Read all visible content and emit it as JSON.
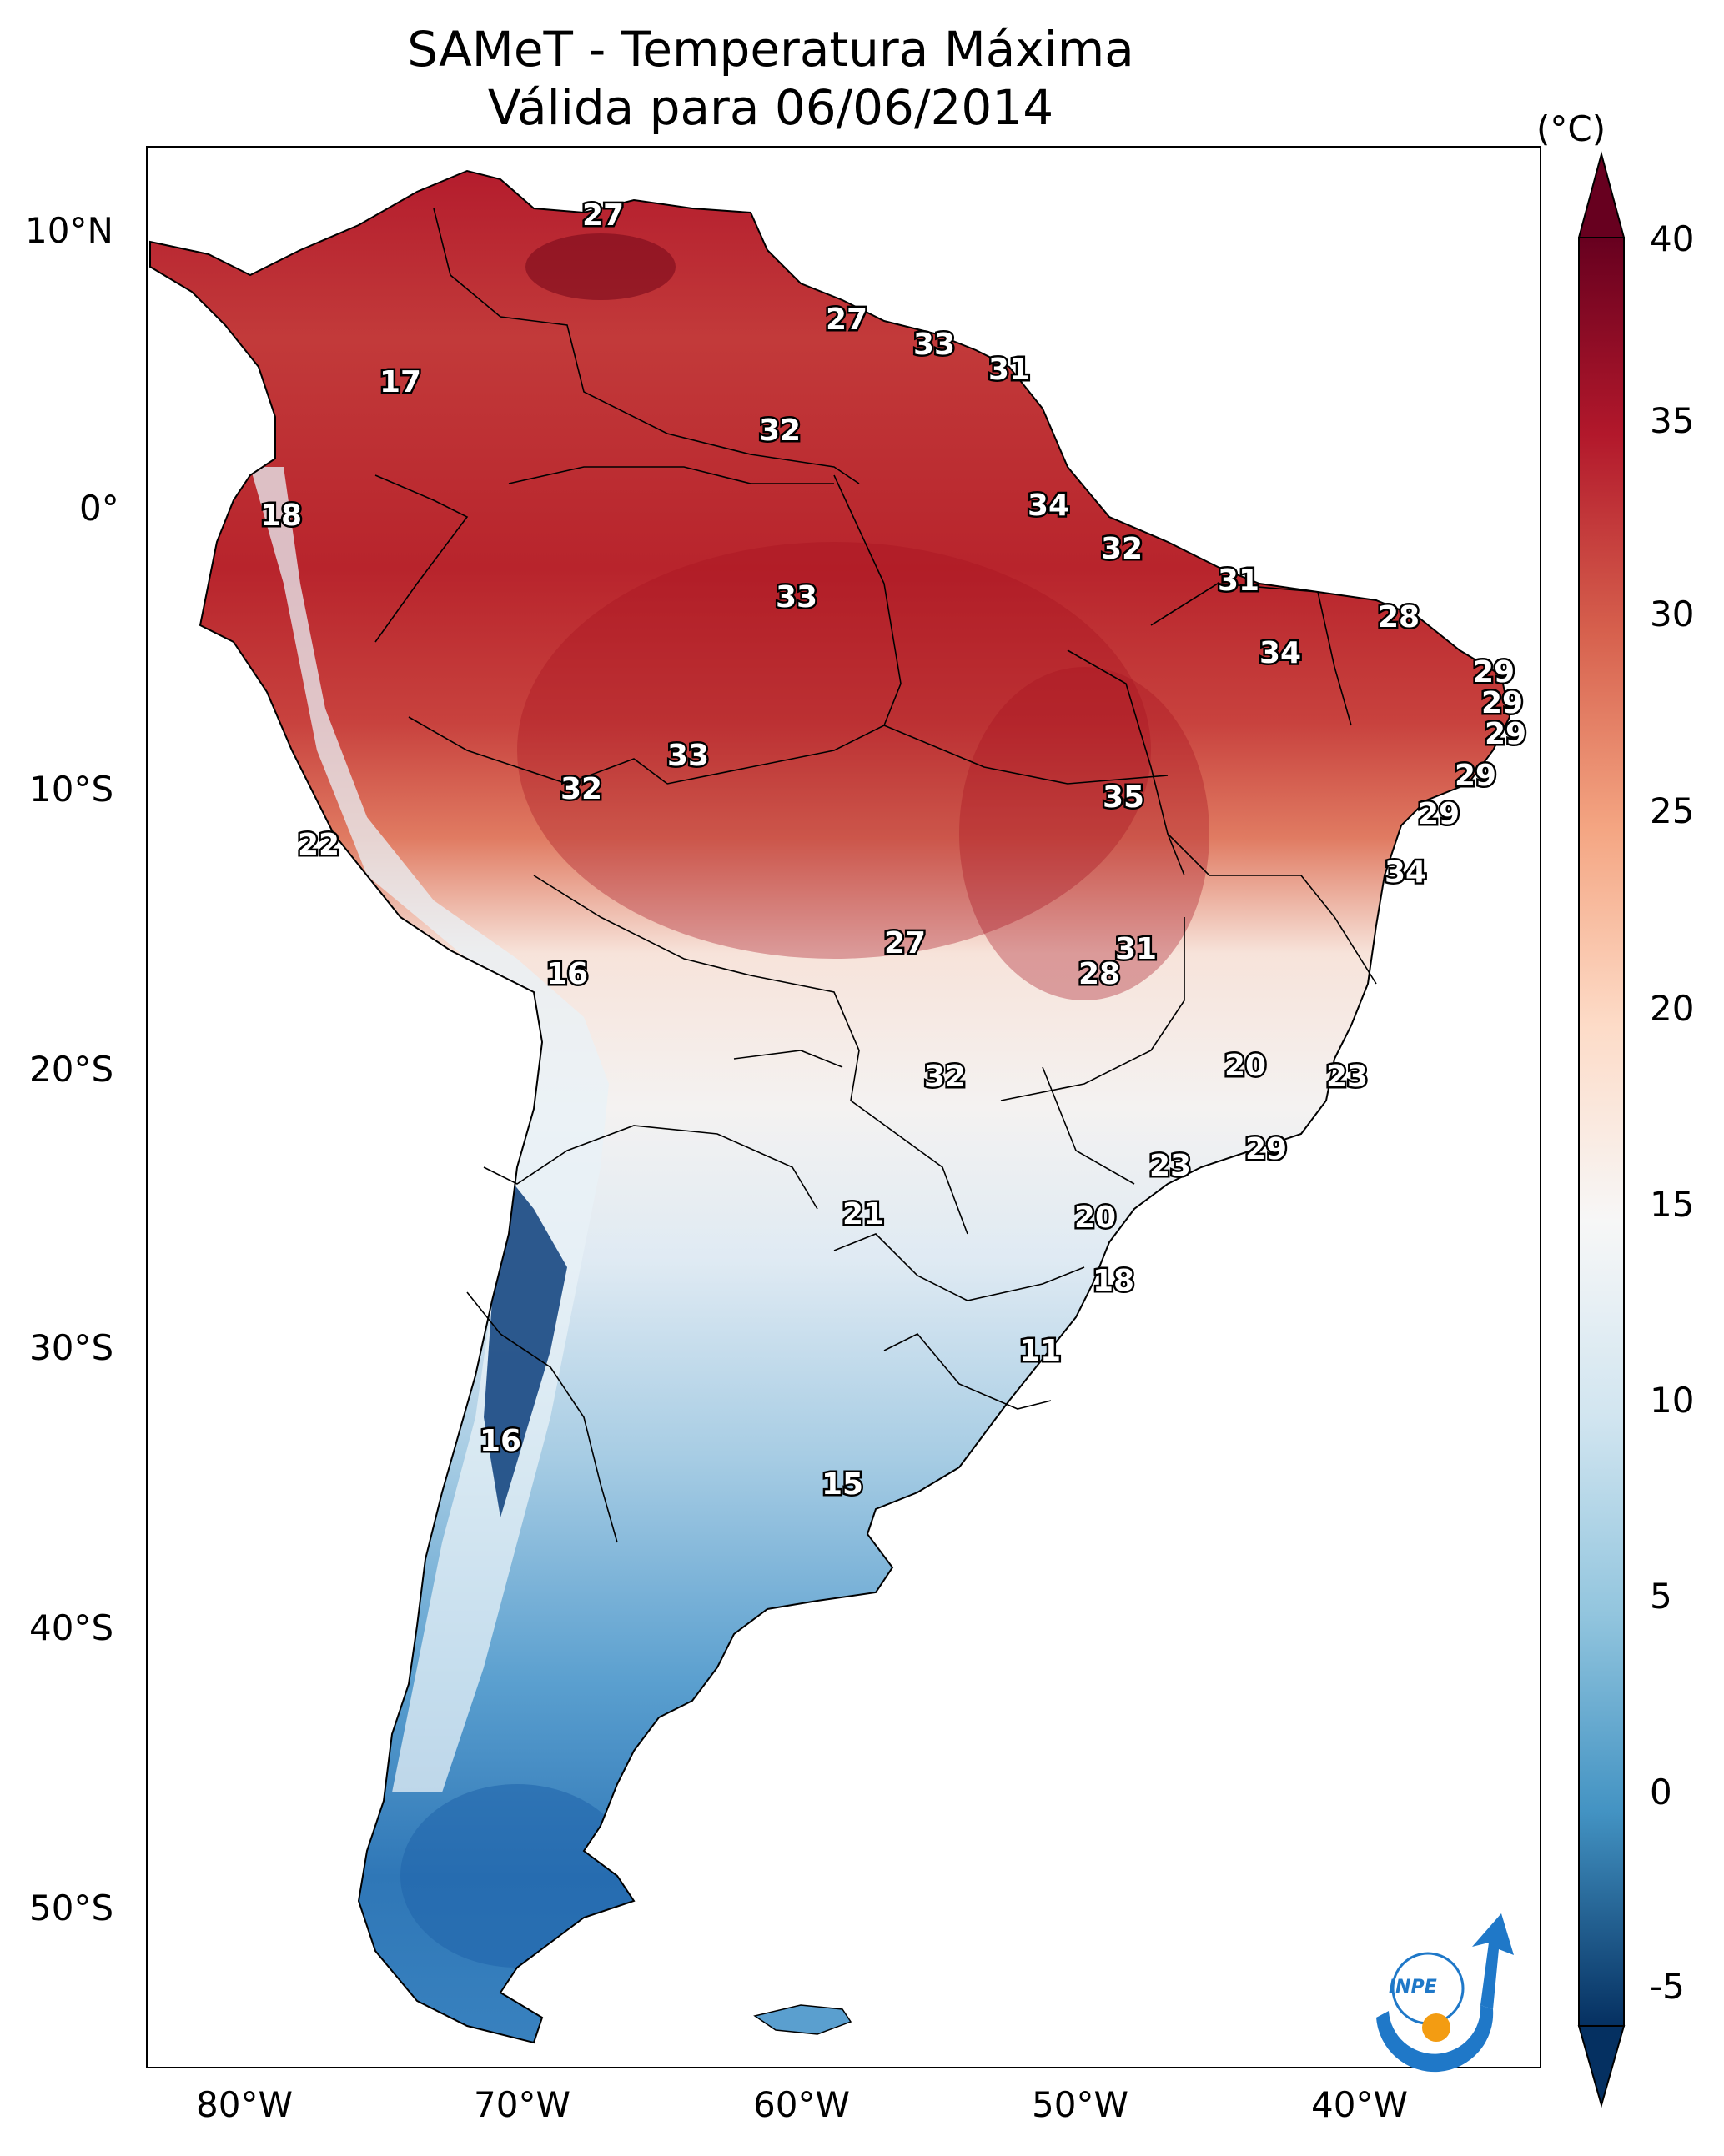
{
  "title": {
    "line1": "SAMeT - Temperatura Máxima",
    "line2": "Válida para 06/06/2014"
  },
  "axes": {
    "lat_ticks": [
      "10°N",
      "0°",
      "10°S",
      "20°S",
      "30°S",
      "40°S",
      "50°S"
    ],
    "lon_ticks": [
      "80°W",
      "70°W",
      "60°W",
      "50°W",
      "40°W"
    ]
  },
  "colorbar": {
    "unit": "(°C)",
    "ticks": [
      "40",
      "35",
      "30",
      "25",
      "20",
      "15",
      "10",
      "5",
      "0",
      "-5"
    ],
    "range": [
      -5,
      40
    ],
    "colormap": [
      "#053061",
      "#2166ac",
      "#4393c3",
      "#92c5de",
      "#d1e5f0",
      "#f7f7f7",
      "#fddbc7",
      "#f4a582",
      "#d6604d",
      "#b2182b",
      "#67001f"
    ]
  },
  "city_values": [
    "27",
    "17",
    "27",
    "33",
    "31",
    "32",
    "18",
    "34",
    "32",
    "33",
    "31",
    "28",
    "34",
    "29",
    "29",
    "29",
    "33",
    "32",
    "35",
    "29",
    "22",
    "29",
    "16",
    "34",
    "27",
    "31",
    "28",
    "32",
    "20",
    "23",
    "29",
    "23",
    "21",
    "20",
    "18",
    "11",
    "16",
    "15"
  ],
  "logo": {
    "text": "INPE",
    "colors": [
      "#1f78c8",
      "#f39c12"
    ]
  }
}
